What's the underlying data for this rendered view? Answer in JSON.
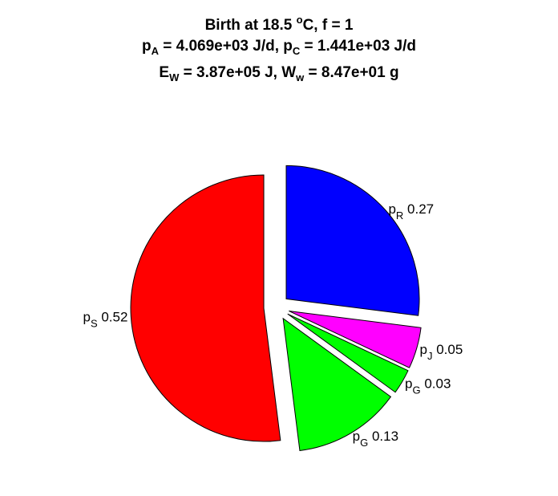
{
  "title": {
    "line1": {
      "pre": "Birth at 18.5 ",
      "sup": "o",
      "post": "C, f = 1"
    },
    "line2": {
      "a_sym": "p",
      "a_sub": "A",
      "a_val": " = 4.069e+03 J/d, ",
      "c_sym": "p",
      "c_sub": "C",
      "c_val": " = 1.441e+03 J/d"
    },
    "line3": {
      "e_sym": "E",
      "e_sub": "W",
      "e_val": " = 3.87e+05 J, ",
      "w_sym": "W",
      "w_sub": "w",
      "w_val": " = 8.47e+01 g"
    }
  },
  "chart_data": {
    "type": "pie",
    "exploded": true,
    "direction": "clockwise-from-top",
    "slices": [
      {
        "sym": "p",
        "sub": "R",
        "value": 0.27,
        "label": " 0.27",
        "color": "#0000ff"
      },
      {
        "sym": "p",
        "sub": "J",
        "value": 0.05,
        "label": " 0.05",
        "color": "#ff00ff"
      },
      {
        "sym": "p",
        "sub": "G",
        "value": 0.03,
        "label": " 0.03",
        "color": "#00ff00"
      },
      {
        "sym": "p",
        "sub": "G",
        "value": 0.13,
        "label": " 0.13",
        "color": "#00ff00"
      },
      {
        "sym": "p",
        "sub": "S",
        "value": 0.52,
        "label": " 0.52",
        "color": "#ff0000"
      }
    ]
  }
}
